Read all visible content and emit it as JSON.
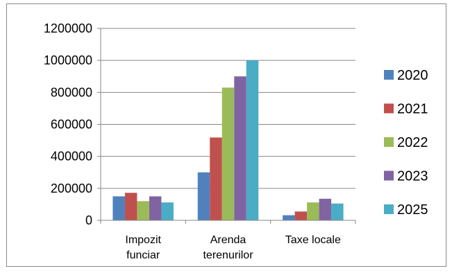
{
  "chart_data": {
    "type": "bar",
    "title": "",
    "xlabel": "",
    "ylabel": "",
    "categories": [
      [
        "Impozit",
        "funciar"
      ],
      [
        "Arenda",
        "terenurilor"
      ],
      [
        "Taxe locale"
      ]
    ],
    "series": [
      {
        "name": "2020",
        "color": "#4F81BD",
        "values": [
          150000,
          300000,
          32000
        ]
      },
      {
        "name": "2021",
        "color": "#C0504D",
        "values": [
          172000,
          518000,
          55000
        ]
      },
      {
        "name": "2022",
        "color": "#9BBB59",
        "values": [
          120000,
          830000,
          112000
        ]
      },
      {
        "name": "2023",
        "color": "#8064A2",
        "values": [
          150000,
          900000,
          135000
        ]
      },
      {
        "name": "2025",
        "color": "#4BACC6",
        "values": [
          112000,
          1000000,
          105000
        ]
      }
    ],
    "ylim": [
      0,
      1200000
    ],
    "yticks": [
      0,
      200000,
      400000,
      600000,
      800000,
      1000000,
      1200000
    ],
    "grid": true,
    "legend": "right"
  }
}
